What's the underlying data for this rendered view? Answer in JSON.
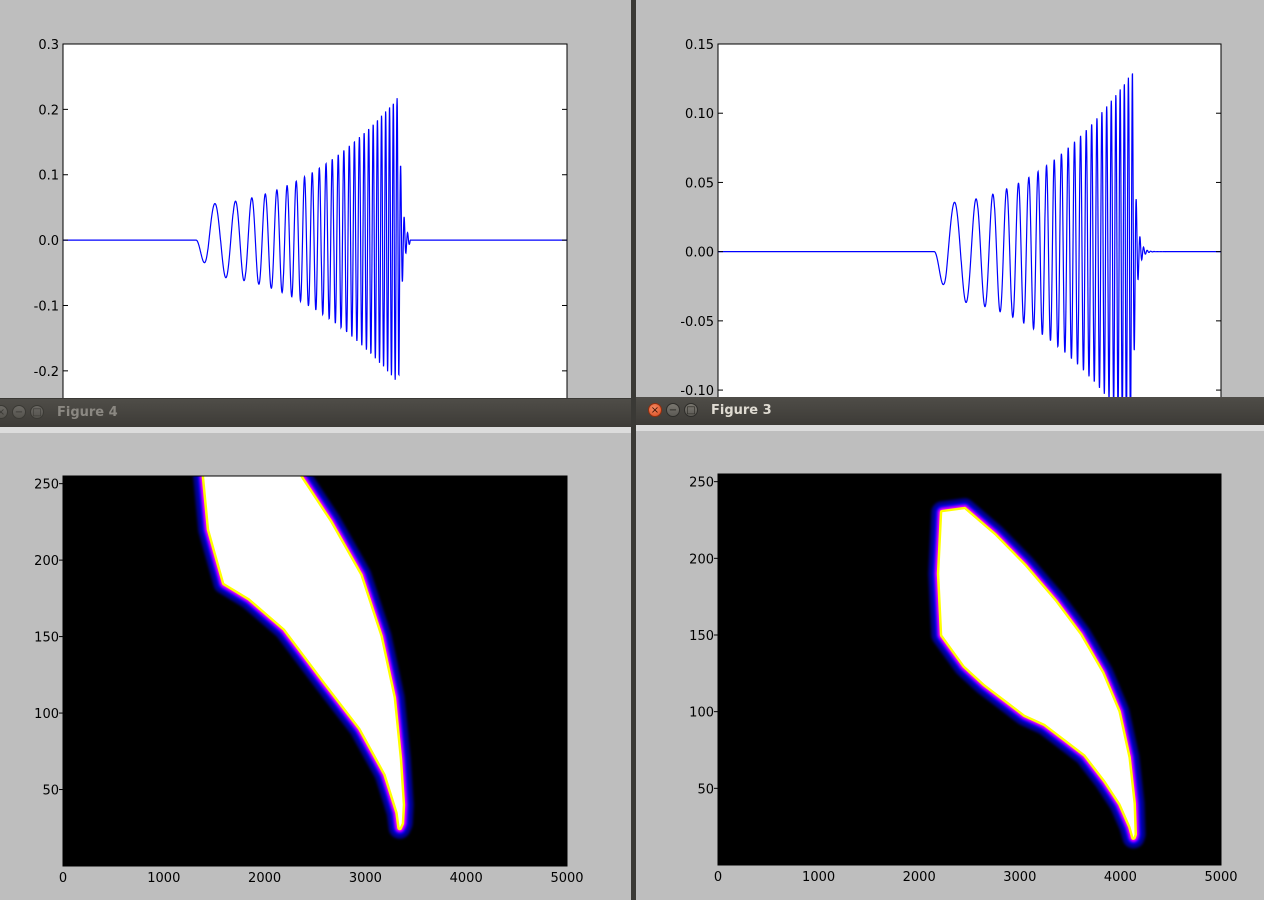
{
  "windows": {
    "figure4": {
      "title": "Figure 4",
      "active": false
    },
    "figure3": {
      "title": "Figure 3",
      "active": true
    }
  },
  "icons": {
    "close": "close-icon",
    "minimize": "minimize-icon",
    "maximize": "maximize-icon"
  },
  "colors": {
    "line": "#0000ff",
    "frame_bg": "#bebebe",
    "titlebar": "#45433f"
  },
  "chart_data": [
    {
      "id": "top-left-line",
      "type": "line",
      "x_range": [
        0,
        5000
      ],
      "ylim": [
        -0.24,
        0.3
      ],
      "y_ticks": [
        "0.3",
        "0.2",
        "0.1",
        "0.0",
        "-0.1",
        "-0.2"
      ],
      "y_tick_values": [
        0.3,
        0.2,
        0.1,
        0.0,
        -0.1,
        -0.2
      ],
      "signal": {
        "onset": 1320,
        "end": 3445,
        "f_start_cycles_per_sample": 0.0038,
        "f_end_cycles_per_sample": 0.03,
        "envelope_start": 0.055,
        "envelope_peak": 0.22,
        "peak_x": 3330
      }
    },
    {
      "id": "top-right-line",
      "type": "line",
      "x_range": [
        0,
        5000
      ],
      "ylim": [
        -0.105,
        0.15
      ],
      "y_ticks": [
        "0.15",
        "0.10",
        "0.05",
        "0.00",
        "-0.05",
        "-0.10"
      ],
      "y_tick_values": [
        0.15,
        0.1,
        0.05,
        0.0,
        -0.05,
        -0.1
      ],
      "signal": {
        "onset": 2150,
        "end": 4450,
        "f_start_cycles_per_sample": 0.0035,
        "f_end_cycles_per_sample": 0.032,
        "envelope_start": 0.035,
        "envelope_peak": 0.13,
        "peak_x": 4120
      }
    },
    {
      "id": "figure4-heatmap",
      "type": "heatmap",
      "xlim": [
        0,
        5000
      ],
      "ylim": [
        0,
        255
      ],
      "x_ticks": [
        "0",
        "1000",
        "2000",
        "3000",
        "4000",
        "5000"
      ],
      "x_tick_values": [
        0,
        1000,
        2000,
        3000,
        4000,
        5000
      ],
      "y_ticks": [
        "250",
        "200",
        "150",
        "100",
        "50"
      ],
      "y_tick_values": [
        250,
        200,
        150,
        100,
        50
      ],
      "colormap": [
        "#000000",
        "#0000ff",
        "#ff00ff",
        "#ffff00",
        "#ffffff"
      ],
      "ridge": {
        "left_edge": [
          [
            1400,
            255
          ],
          [
            1450,
            220
          ],
          [
            1600,
            185
          ],
          [
            1850,
            175
          ],
          [
            2200,
            155
          ],
          [
            2600,
            120
          ],
          [
            2950,
            90
          ],
          [
            3200,
            60
          ],
          [
            3320,
            35
          ],
          [
            3340,
            25
          ]
        ],
        "right_edge": [
          [
            2350,
            255
          ],
          [
            2650,
            225
          ],
          [
            2950,
            190
          ],
          [
            3150,
            150
          ],
          [
            3280,
            110
          ],
          [
            3340,
            70
          ],
          [
            3370,
            40
          ],
          [
            3360,
            28
          ]
        ]
      }
    },
    {
      "id": "figure3-heatmap",
      "type": "heatmap",
      "xlim": [
        0,
        5000
      ],
      "ylim": [
        0,
        255
      ],
      "x_ticks": [
        "0",
        "1000",
        "2000",
        "3000",
        "4000",
        "5000"
      ],
      "x_tick_values": [
        0,
        1000,
        2000,
        3000,
        4000,
        5000
      ],
      "y_ticks": [
        "250",
        "200",
        "150",
        "100",
        "50"
      ],
      "y_tick_values": [
        250,
        200,
        150,
        100,
        50
      ],
      "colormap": [
        "#000000",
        "#0000ff",
        "#ff00ff",
        "#ffff00",
        "#ffffff"
      ],
      "ridge": {
        "left_edge": [
          [
            2230,
            230
          ],
          [
            2200,
            190
          ],
          [
            2230,
            150
          ],
          [
            2450,
            130
          ],
          [
            2650,
            118
          ],
          [
            2850,
            108
          ],
          [
            3050,
            98
          ],
          [
            3250,
            92
          ],
          [
            3450,
            82
          ],
          [
            3650,
            72
          ],
          [
            3850,
            55
          ],
          [
            4000,
            40
          ],
          [
            4100,
            25
          ],
          [
            4130,
            18
          ]
        ],
        "right_edge": [
          [
            2450,
            232
          ],
          [
            2750,
            215
          ],
          [
            3050,
            195
          ],
          [
            3350,
            172
          ],
          [
            3600,
            150
          ],
          [
            3820,
            125
          ],
          [
            3980,
            100
          ],
          [
            4080,
            70
          ],
          [
            4130,
            40
          ],
          [
            4140,
            20
          ]
        ]
      }
    }
  ]
}
